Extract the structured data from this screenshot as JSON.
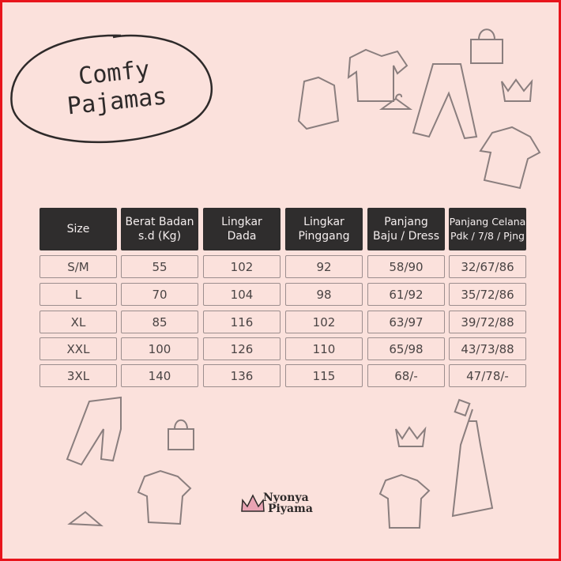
{
  "title": {
    "line1": "Comfy",
    "line2": "Pajamas"
  },
  "size_chart": {
    "headers": [
      [
        "Size"
      ],
      [
        "Berat Badan",
        "s.d (Kg)"
      ],
      [
        "Lingkar",
        "Dada"
      ],
      [
        "Lingkar",
        "Pinggang"
      ],
      [
        "Panjang",
        "Baju / Dress"
      ],
      [
        "Panjang Celana",
        "Pdk / 7/8 / Pjng"
      ]
    ],
    "rows": [
      [
        "S/M",
        "55",
        "102",
        "92",
        "58/90",
        "32/67/86"
      ],
      [
        "L",
        "70",
        "104",
        "98",
        "61/92",
        "35/72/86"
      ],
      [
        "XL",
        "85",
        "116",
        "102",
        "63/97",
        "39/72/88"
      ],
      [
        "XXL",
        "100",
        "126",
        "110",
        "65/98",
        "43/73/88"
      ],
      [
        "3XL",
        "140",
        "136",
        "115",
        "68/-",
        "47/78/-"
      ]
    ]
  },
  "brand": {
    "line1": "Nyonya",
    "line2": "Piyama"
  },
  "colors": {
    "background": "#fbe1dc",
    "header": "#2f2d2d",
    "border": "#e8141c",
    "crown": "#e9a3b3"
  }
}
